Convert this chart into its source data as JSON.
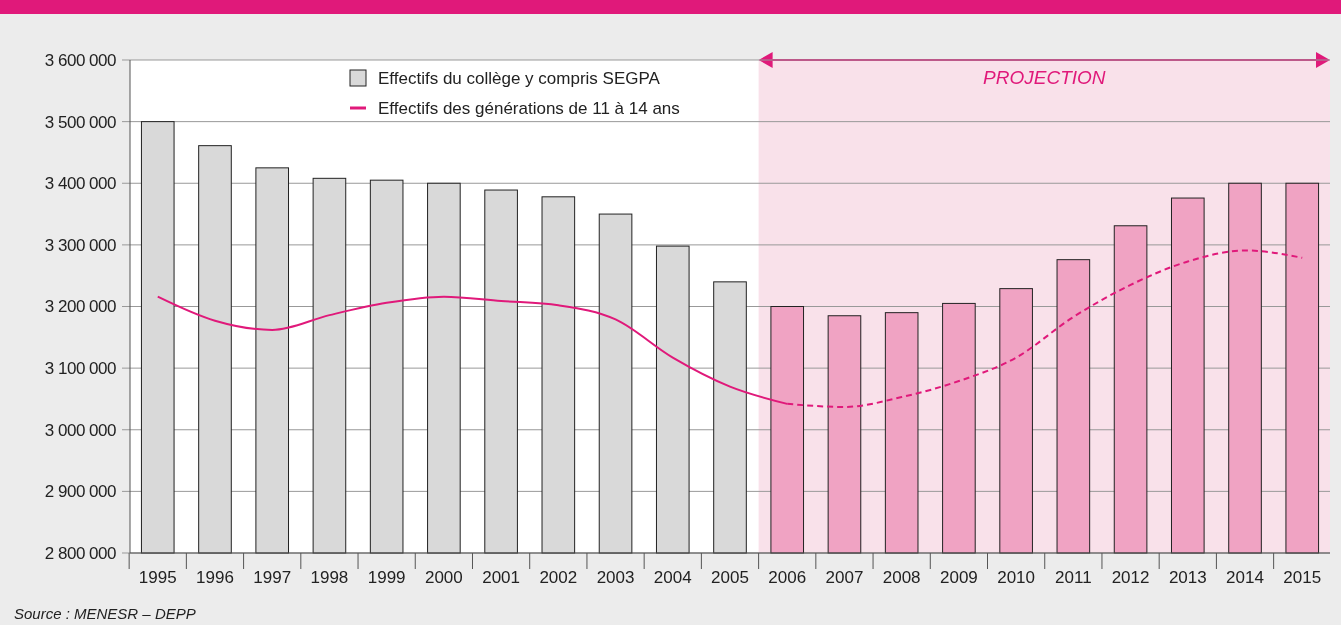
{
  "chart_data": {
    "type": "bar",
    "categories": [
      "1995",
      "1996",
      "1997",
      "1998",
      "1999",
      "2000",
      "2001",
      "2002",
      "2003",
      "2004",
      "2005",
      "2006",
      "2007",
      "2008",
      "2009",
      "2010",
      "2011",
      "2012",
      "2013",
      "2014",
      "2015"
    ],
    "series": [
      {
        "name": "Effectifs du collège y compris SEGPA",
        "color": "#d9d9d9",
        "colors": [
          "#d9d9d9",
          "#d9d9d9",
          "#d9d9d9",
          "#d9d9d9",
          "#d9d9d9",
          "#d9d9d9",
          "#d9d9d9",
          "#d9d9d9",
          "#d9d9d9",
          "#d9d9d9",
          "#d9d9d9",
          "#f0a3c3",
          "#f0a3c3",
          "#f0a3c3",
          "#f0a3c3",
          "#f0a3c3",
          "#f0a3c3",
          "#f0a3c3",
          "#f0a3c3",
          "#f0a3c3",
          "#f0a3c3"
        ],
        "values": [
          3500000,
          3461000,
          3425000,
          3408000,
          3405000,
          3400000,
          3389000,
          3378000,
          3350000,
          3298000,
          3240000,
          3200000,
          3185000,
          3190000,
          3205000,
          3229000,
          3276000,
          3331000,
          3376000,
          3400000,
          3400000
        ]
      },
      {
        "type": "line",
        "name": "Effectifs des générations de 11 à 14 ans",
        "color": "#e0197a",
        "line_style": "solid",
        "values": [
          3216000,
          3177000,
          3162000,
          3186000,
          3206000,
          3216000,
          3209000,
          3202000,
          3179000,
          3117000,
          3070000,
          3042000,
          null,
          null,
          null,
          null,
          null,
          null,
          null,
          null,
          null
        ]
      },
      {
        "type": "line",
        "color": "#e0197a",
        "line_style": "dashed",
        "values": [
          null,
          null,
          null,
          null,
          null,
          null,
          null,
          null,
          null,
          null,
          null,
          3042000,
          3037000,
          3053000,
          3079000,
          3117000,
          3183000,
          3235000,
          3273000,
          3291000,
          3279000
        ]
      }
    ],
    "ylim": [
      2800000,
      3600000
    ],
    "yticks": [
      {
        "value": 2800000,
        "label": "2 800 000"
      },
      {
        "value": 2900000,
        "label": "2 900 000"
      },
      {
        "value": 3000000,
        "label": "3 000 000"
      },
      {
        "value": 3100000,
        "label": "3 100 000"
      },
      {
        "value": 3200000,
        "label": "3 200 000"
      },
      {
        "value": 3300000,
        "label": "3 300 000"
      },
      {
        "value": 3400000,
        "label": "3 400 000"
      },
      {
        "value": 3500000,
        "label": "3 500 000"
      },
      {
        "value": 3600000,
        "label": "3 600 000"
      }
    ],
    "grid": "y",
    "legend": "top left",
    "marker": "none",
    "bands": [
      {
        "axis": "x",
        "from": "2006",
        "to": "2015",
        "label": "PROJECTION",
        "color": "#f9e1ea"
      }
    ],
    "annotations": [
      "Source : MENESR – DEPP"
    ]
  }
}
